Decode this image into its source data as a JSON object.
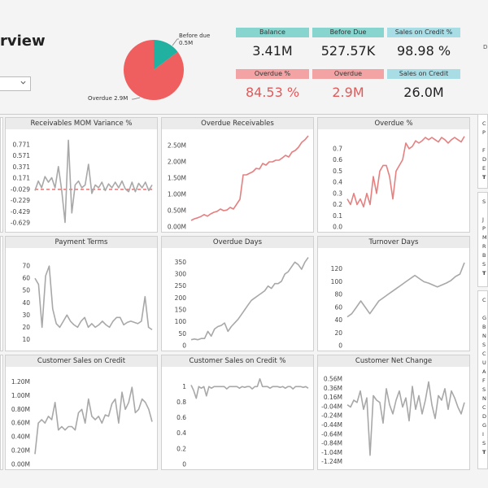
{
  "header": {
    "title": "rview",
    "edge_letter": "D"
  },
  "pie": {
    "slices": [
      {
        "name": "Before due",
        "value": 0.5,
        "color": "#21b1a0"
      },
      {
        "name": "Overdue",
        "value": 2.9,
        "color": "#f05f5f"
      }
    ],
    "label_before_due": "Before due",
    "label_before_due_value": "0.5M",
    "label_overdue": "Overdue 2.9M"
  },
  "kpis": [
    {
      "label": "Balance",
      "value": "3.41M",
      "head_color": "#88d5cf",
      "value_color": "#222222"
    },
    {
      "label": "Before Due",
      "value": "527.57K",
      "head_color": "#88d5cf",
      "value_color": "#222222"
    },
    {
      "label": "Sales on Credit %",
      "value": "98.98 %",
      "head_color": "#a9dde6",
      "value_color": "#222222"
    },
    {
      "label": "Overdue %",
      "value": "84.53 %",
      "head_color": "#f3a3a3",
      "value_color": "#e05a5a"
    },
    {
      "label": "Overdue",
      "value": "2.9M",
      "head_color": "#f3a3a3",
      "value_color": "#e05a5a"
    },
    {
      "label": "Sales on Credit",
      "value": "26.0M",
      "head_color": "#a9dde6",
      "value_color": "#222222"
    }
  ],
  "slicers": [
    {
      "letters": [
        "C",
        "P",
        "",
        "F",
        "D",
        "E",
        "T"
      ]
    },
    {
      "letters": [
        "S",
        "",
        "J",
        "P",
        "M",
        "R",
        "B",
        "S",
        "T"
      ]
    },
    {
      "letters": [
        "C",
        "",
        "G",
        "B",
        "N",
        "S",
        "C",
        "U",
        "A",
        "F",
        "S",
        "N",
        "C",
        "D",
        "G",
        "I",
        "S",
        "T"
      ]
    }
  ],
  "chart_data": [
    {
      "type": "line",
      "title": "Receivables MOM Variance %",
      "yticks": [
        "0.771",
        "0.571",
        "0.371",
        "0.171",
        "-0.029",
        "-0.229",
        "-0.429",
        "-0.629"
      ],
      "ylim": [
        -0.7,
        0.9
      ],
      "color": "#a8a8a8",
      "values": [
        -0.05,
        0.12,
        0.0,
        0.2,
        0.1,
        0.18,
        0.0,
        0.38,
        -0.05,
        -0.62,
        0.85,
        -0.45,
        0.05,
        0.12,
        0.0,
        0.05,
        0.42,
        -0.1,
        0.05,
        0.0,
        0.1,
        -0.05,
        0.07,
        0.0,
        0.1,
        0.0,
        0.12,
        -0.02,
        -0.07,
        0.1,
        -0.07,
        0.08,
        0.0,
        0.1,
        -0.05,
        0.05
      ],
      "reference": {
        "value": -0.029,
        "color": "#e05a5a"
      }
    },
    {
      "type": "line",
      "title": "Overdue Receivables",
      "yticks": [
        "2.50M",
        "2.00M",
        "1.50M",
        "1.00M",
        "0.50M",
        "0.00M"
      ],
      "ylim": [
        0,
        2.75
      ],
      "color": "#e58080",
      "values": [
        0.2,
        0.25,
        0.28,
        0.32,
        0.38,
        0.33,
        0.4,
        0.45,
        0.48,
        0.55,
        0.5,
        0.52,
        0.6,
        0.55,
        0.7,
        0.85,
        1.6,
        1.6,
        1.65,
        1.7,
        1.8,
        1.78,
        1.95,
        1.9,
        2.0,
        2.0,
        2.05,
        2.05,
        2.12,
        2.2,
        2.15,
        2.3,
        2.35,
        2.45,
        2.6,
        2.68,
        2.8
      ]
    },
    {
      "type": "line",
      "title": "Overdue %",
      "yticks": [
        "0.7",
        "0.6",
        "0.5",
        "0.4",
        "0.3",
        "0.2",
        "0.1",
        "0.0"
      ],
      "ylim": [
        0,
        0.8
      ],
      "color": "#e58080",
      "values": [
        0.25,
        0.2,
        0.3,
        0.2,
        0.25,
        0.18,
        0.3,
        0.2,
        0.45,
        0.3,
        0.5,
        0.55,
        0.55,
        0.45,
        0.25,
        0.5,
        0.55,
        0.6,
        0.75,
        0.7,
        0.72,
        0.77,
        0.75,
        0.77,
        0.8,
        0.78,
        0.8,
        0.78,
        0.76,
        0.8,
        0.78,
        0.75,
        0.78,
        0.8,
        0.78,
        0.76,
        0.81
      ]
    },
    {
      "type": "line",
      "title": "Payment Terms",
      "yticks": [
        "70",
        "60",
        "50",
        "40",
        "30",
        "20",
        "10"
      ],
      "ylim": [
        5,
        78
      ],
      "color": "#a8a8a8",
      "values": [
        60,
        55,
        20,
        62,
        70,
        35,
        23,
        20,
        25,
        30,
        25,
        22,
        20,
        25,
        28,
        20,
        23,
        20,
        22,
        25,
        22,
        20,
        25,
        28,
        28,
        22,
        24,
        25,
        24,
        23,
        25,
        45,
        20,
        18
      ]
    },
    {
      "type": "line",
      "title": "Overdue Days",
      "yticks": [
        "350",
        "300",
        "250",
        "200",
        "150",
        "100",
        "50",
        "0"
      ],
      "ylim": [
        0,
        375
      ],
      "color": "#a8a8a8",
      "values": [
        25,
        28,
        25,
        30,
        30,
        60,
        40,
        70,
        80,
        85,
        95,
        60,
        80,
        95,
        110,
        130,
        150,
        170,
        190,
        200,
        210,
        220,
        230,
        250,
        240,
        260,
        260,
        270,
        300,
        310,
        330,
        350,
        340,
        320,
        350,
        370
      ]
    },
    {
      "type": "line",
      "title": "Turnover Days",
      "yticks": [
        "120",
        "100",
        "80",
        "60",
        "40",
        "20",
        "0"
      ],
      "ylim": [
        0,
        140
      ],
      "color": "#a8a8a8",
      "values": [
        45,
        50,
        60,
        70,
        60,
        50,
        60,
        70,
        75,
        80,
        85,
        90,
        95,
        100,
        105,
        110,
        105,
        100,
        98,
        95,
        92,
        95,
        98,
        102,
        108,
        112,
        130
      ]
    },
    {
      "type": "line",
      "title": "Customer Sales on Credit",
      "yticks": [
        "1.20M",
        "1.00M",
        "0.80M",
        "0.60M",
        "0.40M",
        "0.20M",
        "0.00M"
      ],
      "ylim": [
        0,
        1.3
      ],
      "color": "#a8a8a8",
      "values": [
        0.15,
        0.6,
        0.65,
        0.6,
        0.7,
        0.65,
        0.9,
        0.5,
        0.55,
        0.5,
        0.55,
        0.55,
        0.5,
        0.75,
        0.8,
        0.6,
        0.95,
        0.7,
        0.65,
        0.7,
        0.6,
        0.72,
        0.7,
        0.88,
        0.95,
        0.6,
        1.05,
        0.8,
        0.9,
        1.12,
        0.75,
        0.8,
        0.95,
        0.9,
        0.8,
        0.62
      ]
    },
    {
      "type": "line",
      "title": "Customer Sales on Credit %",
      "yticks": [
        "1",
        "0.8",
        "0.6",
        "0.4",
        "0.2",
        "0"
      ],
      "ylim": [
        0,
        1.15
      ],
      "color": "#a8a8a8",
      "values": [
        1.02,
        0.95,
        0.85,
        1.0,
        0.98,
        1.0,
        0.88,
        1.0,
        0.98,
        1.0,
        1.0,
        1.0,
        1.0,
        1.0,
        0.97,
        1.0,
        1.0,
        1.0,
        1.0,
        0.98,
        1.0,
        0.99,
        1.0,
        1.0,
        0.97,
        1.0,
        1.0,
        1.1,
        1.0,
        1.0,
        1.0,
        0.98,
        1.0,
        1.0,
        1.0,
        0.99,
        1.0,
        0.98,
        1.0,
        1.0,
        0.97,
        1.0,
        1.0,
        1.0,
        0.99,
        1.0,
        0.98
      ]
    },
    {
      "type": "line",
      "title": "Customer Net Change",
      "yticks": [
        "0.56M",
        "0.36M",
        "0.16M",
        "-0.04M",
        "-0.24M",
        "-0.44M",
        "-0.64M",
        "-0.84M",
        "-1.04M",
        "-1.24M"
      ],
      "ylim": [
        -1.3,
        0.65
      ],
      "color": "#a8a8a8",
      "values": [
        0.0,
        -0.05,
        0.1,
        0.05,
        0.3,
        -0.1,
        0.15,
        -1.1,
        0.2,
        0.1,
        0.05,
        -0.4,
        0.35,
        0.0,
        -0.2,
        0.1,
        0.3,
        -0.05,
        0.15,
        -0.35,
        0.4,
        -0.1,
        0.2,
        -0.2,
        0.1,
        0.5,
        0.0,
        -0.3,
        0.2,
        0.1,
        0.35,
        -0.1,
        0.3,
        0.15,
        -0.05,
        -0.2,
        0.05
      ]
    }
  ]
}
